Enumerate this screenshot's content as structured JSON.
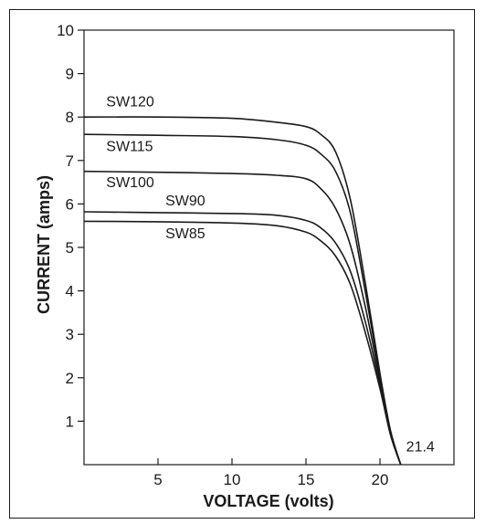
{
  "chart_data": {
    "type": "line",
    "title": "",
    "xlabel": "VOLTAGE (volts)",
    "ylabel": "CURRENT (amps)",
    "xlim": [
      0,
      25
    ],
    "ylim": [
      0,
      10
    ],
    "xticks": [
      5,
      10,
      15,
      20
    ],
    "yticks": [
      1,
      2,
      3,
      4,
      5,
      6,
      7,
      8,
      9,
      10
    ],
    "grid": false,
    "legend": "none",
    "series": [
      {
        "name": "SW120",
        "x": [
          0,
          5,
          10,
          13,
          15,
          16,
          17,
          18,
          19,
          20,
          20.7,
          21.4
        ],
        "y": [
          8.0,
          8.0,
          7.97,
          7.88,
          7.78,
          7.6,
          7.2,
          6.1,
          4.2,
          2.1,
          0.8,
          0
        ]
      },
      {
        "name": "SW115",
        "x": [
          0,
          5,
          10,
          13,
          15,
          16,
          17,
          18,
          19,
          20,
          20.7,
          21.4
        ],
        "y": [
          7.6,
          7.58,
          7.55,
          7.48,
          7.35,
          7.15,
          6.75,
          5.8,
          4.0,
          2.05,
          0.8,
          0
        ]
      },
      {
        "name": "SW100",
        "x": [
          0,
          5,
          10,
          13,
          15,
          16,
          17,
          18,
          19,
          20,
          20.7,
          21.4
        ],
        "y": [
          6.75,
          6.73,
          6.7,
          6.66,
          6.58,
          6.35,
          5.9,
          5.05,
          3.65,
          1.95,
          0.75,
          0
        ]
      },
      {
        "name": "SW90",
        "x": [
          0,
          5,
          10,
          13,
          15,
          16,
          17,
          18,
          19,
          20,
          20.7,
          21.4
        ],
        "y": [
          5.82,
          5.8,
          5.78,
          5.74,
          5.62,
          5.45,
          5.1,
          4.45,
          3.3,
          1.85,
          0.72,
          0
        ]
      },
      {
        "name": "SW85",
        "x": [
          0,
          5,
          10,
          13,
          15,
          16,
          17,
          18,
          19,
          20,
          20.7,
          21.4
        ],
        "y": [
          5.6,
          5.59,
          5.56,
          5.5,
          5.35,
          5.15,
          4.8,
          4.15,
          3.05,
          1.75,
          0.7,
          0
        ]
      }
    ],
    "curve_labels": [
      {
        "series": "SW120",
        "text": "SW120",
        "x": 1.5,
        "y": 8.25
      },
      {
        "series": "SW115",
        "text": "SW115",
        "x": 1.5,
        "y": 7.22
      },
      {
        "series": "SW100",
        "text": "SW100",
        "x": 1.5,
        "y": 6.39
      },
      {
        "series": "SW90",
        "text": "SW90",
        "x": 5.5,
        "y": 5.97
      },
      {
        "series": "SW85",
        "text": "SW85",
        "x": 5.5,
        "y": 5.21
      }
    ],
    "annotations": [
      {
        "text": "21.4",
        "x": 21.4,
        "y": 0.3
      }
    ]
  }
}
